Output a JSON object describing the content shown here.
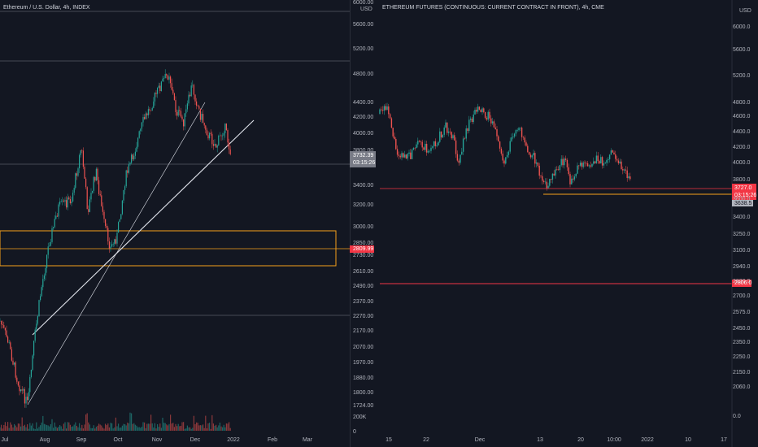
{
  "left_chart": {
    "title": "Ethereum / U.S. Dollar, 4h, INDEX",
    "currency": "USD",
    "y_ticks": [
      "6000.00",
      "5600.00",
      "5200.00",
      "4800.00",
      "4400.00",
      "4200.00",
      "4000.00",
      "3800.00",
      "3400.00",
      "3200.00",
      "3000.00",
      "2850.00",
      "2730.00",
      "2610.00",
      "2490.00",
      "2370.00",
      "2270.00",
      "2170.00",
      "2070.00",
      "1970.00",
      "1880.00",
      "1800.00",
      "1724.00",
      "200K",
      "0"
    ],
    "x_ticks": [
      "Jul",
      "Aug",
      "Sep",
      "Oct",
      "Nov",
      "Dec",
      "2022",
      "Feb",
      "Mar"
    ],
    "price_tag": "3732.39",
    "countdown": "03:15:26",
    "level_tag": "2809.99"
  },
  "right_chart": {
    "title": "ETHEREUM FUTURES (CONTINUOUS: CURRENT CONTRACT IN FRONT), 4h, CME",
    "currency": "USD",
    "y_ticks": [
      "6000.0",
      "5600.0",
      "5200.0",
      "4800.0",
      "4600.0",
      "4400.0",
      "4200.0",
      "4000.0",
      "3800.0",
      "3600.0",
      "3400.0",
      "3250.0",
      "3100.0",
      "2940.0",
      "2820.0",
      "2700.0",
      "2575.0",
      "2450.0",
      "2350.0",
      "2250.0",
      "2150.0",
      "2060.0",
      "0.0"
    ],
    "x_ticks": [
      "15",
      "22",
      "Dec",
      "13",
      "20",
      "10:00",
      "2022",
      "10",
      "17"
    ],
    "price_tag": "3727.0",
    "countdown": "03:15:26",
    "secondary_tag": "3638.5",
    "level_tag": "2806.0"
  },
  "colors": {
    "background": "#131722",
    "up": "#26a69a",
    "down": "#ef5350",
    "box": "#f7a21b",
    "level": "#f23645",
    "grey_line": "#787b86"
  }
}
